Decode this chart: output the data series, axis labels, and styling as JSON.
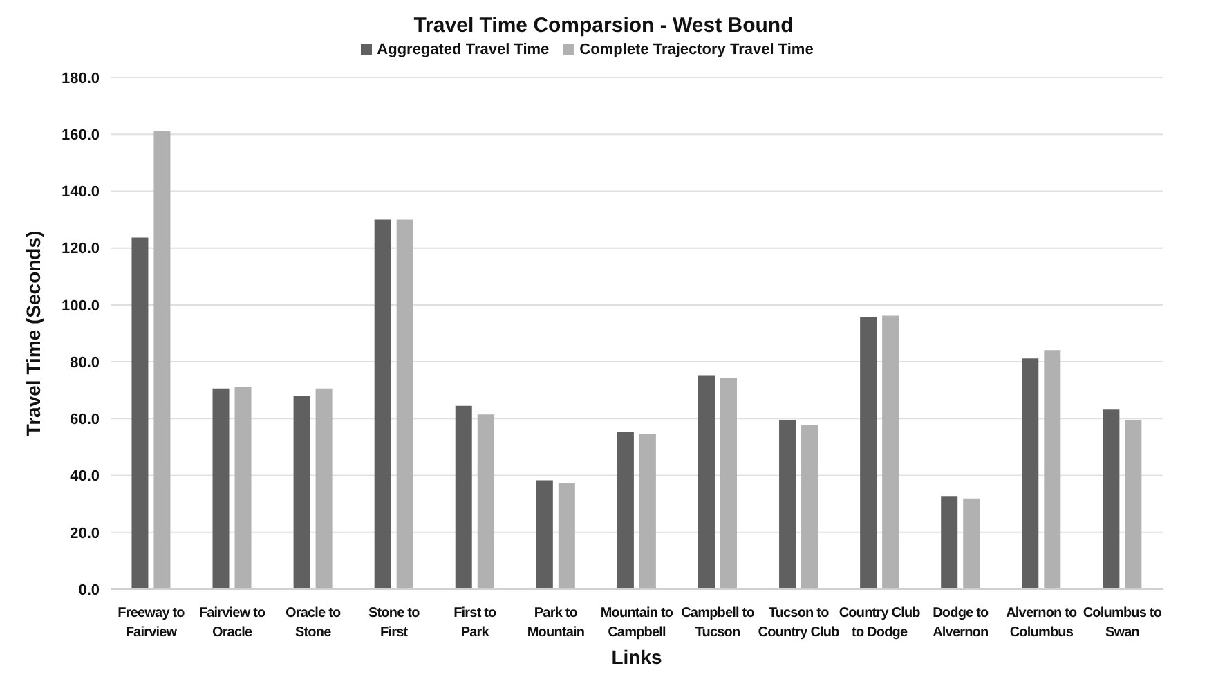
{
  "chart_data": {
    "type": "bar",
    "title": "Travel Time Comparsion - West Bound",
    "xlabel": "Links",
    "ylabel": "Travel Time (Seconds)",
    "categories": [
      "Freeway to Fairview",
      "Fairview to Oracle",
      "Oracle to Stone",
      "Stone to First",
      "First to Park",
      "Park to Mountain",
      "Mountain to Campbell",
      "Campbell to Tucson",
      "Tucson to Country Club",
      "Country Club to Dodge",
      "Dodge to Alvernon",
      "Alvernon to Columbus",
      "Columbus to Swan"
    ],
    "series": [
      {
        "name": "Aggregated Travel Time",
        "color": "#5f605f",
        "values": [
          123.7,
          70.6,
          67.9,
          130,
          64.5,
          38.3,
          55.2,
          75.3,
          59.4,
          95.8,
          32.8,
          81.2,
          63.2
        ]
      },
      {
        "name": "Complete Trajectory Travel Time",
        "color": "#b1b1b1",
        "values": [
          161,
          71.1,
          70.6,
          130,
          61.5,
          37.3,
          54.7,
          74.4,
          57.7,
          96.2,
          31.9,
          84.1,
          59.4
        ]
      }
    ],
    "ylim": [
      0,
      180
    ],
    "yticks": [
      {
        "value": 0,
        "label": "0.0"
      },
      {
        "value": 20,
        "label": "20.0"
      },
      {
        "value": 40,
        "label": "40.0"
      },
      {
        "value": 60,
        "label": "60.0"
      },
      {
        "value": 80,
        "label": "80.0"
      },
      {
        "value": 100,
        "label": "100.0"
      },
      {
        "value": 120,
        "label": "120.0"
      },
      {
        "value": 140,
        "label": "140.0"
      },
      {
        "value": 160,
        "label": "160.0"
      },
      {
        "value": 180,
        "label": "180.0"
      }
    ],
    "grid": "y",
    "legend": "top"
  }
}
